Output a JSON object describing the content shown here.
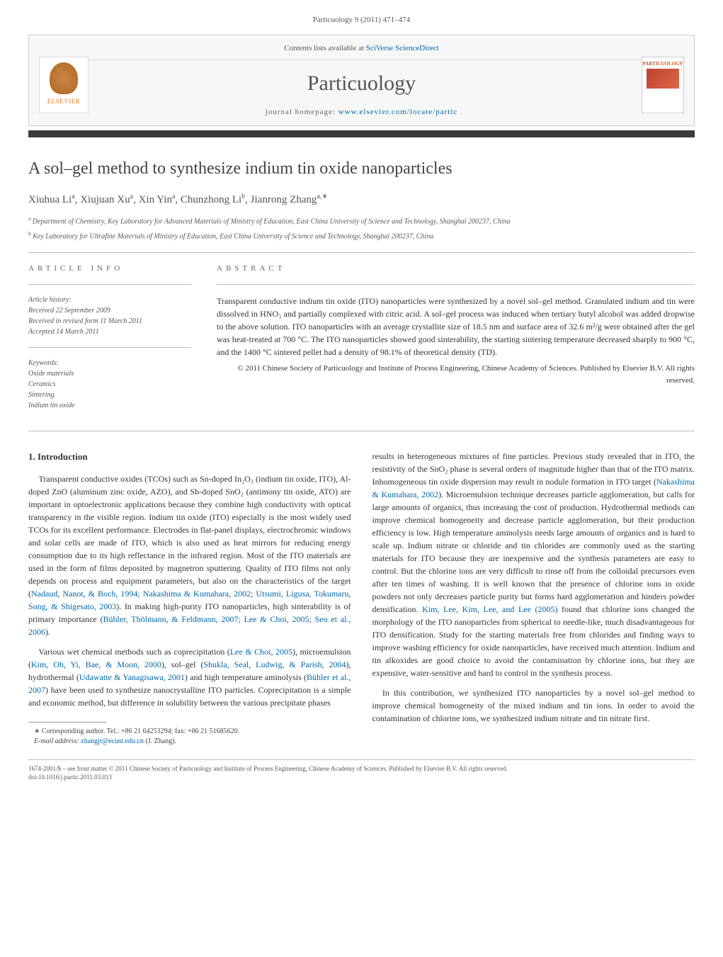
{
  "journal_ref": "Particuology 9 (2011) 471–474",
  "header": {
    "contents_line_prefix": "Contents lists available at ",
    "contents_link": "SciVerse ScienceDirect",
    "journal_title": "Particuology",
    "homepage_prefix": "journal homepage: ",
    "homepage_url": "www.elsevier.com/locate/partic",
    "publisher_name": "ELSEVIER",
    "cover_title": "PARTICUOLOGY"
  },
  "article": {
    "title": "A sol–gel method to synthesize indium tin oxide nanoparticles",
    "authors_html": "Xiuhua Li<sup>a</sup>, Xiujuan Xu<sup>a</sup>, Xin Yin<sup>a</sup>, Chunzhong Li<sup>b</sup>, Jianrong Zhang<sup>a,∗</sup>",
    "affiliations": [
      {
        "sup": "a",
        "text": "Department of Chemistry, Key Laboratory for Advanced Materials of Ministry of Education, East China University of Science and Technology, Shanghai 200237, China"
      },
      {
        "sup": "b",
        "text": "Key Laboratory for Ultrafine Materials of Ministry of Education, East China University of Science and Technology, Shanghai 200237, China"
      }
    ]
  },
  "info": {
    "label": "article info",
    "history_heading": "Article history:",
    "history": [
      "Received 22 September 2009",
      "Received in revised form 11 March 2011",
      "Accepted 14 March 2011"
    ],
    "keywords_heading": "Keywords:",
    "keywords": [
      "Oxide materials",
      "Ceramics",
      "Sintering",
      "Indium tin oxide"
    ]
  },
  "abstract": {
    "label": "abstract",
    "text": "Transparent conductive indium tin oxide (ITO) nanoparticles were synthesized by a novel sol–gel method. Granulated indium and tin were dissolved in HNO₃ and partially complexed with citric acid. A sol–gel process was induced when tertiary butyl alcohol was added dropwise to the above solution. ITO nanoparticles with an average crystallite size of 18.5 nm and surface area of 32.6 m²/g were obtained after the gel was heat-treated at 700 °C. The ITO nanoparticles showed good sinterability, the starting sintering temperature decreased sharply to 900 °C, and the 1400 °C sintered pellet had a density of 98.1% of theoretical density (TD).",
    "copyright": "© 2011 Chinese Society of Particuology and Institute of Process Engineering, Chinese Academy of Sciences. Published by Elsevier B.V. All rights reserved."
  },
  "body": {
    "section_heading": "1. Introduction",
    "col1": {
      "p1_pre": "Transparent conductive oxides (TCOs) such as Sn-doped In₂O₃ (indium tin oxide, ITO), Al-doped ZnO (aluminum zinc oxide, AZO), and Sb-doped SnO₂ (antimony tin oxide, ATO) are important in optoelectronic applications because they combine high conductivity with optical transparency in the visible region. Indium tin oxide (ITO) especially is the most widely used TCOs for its excellent performance. Electrodes in flat-panel displays, electrochromic windows and solar cells are made of ITO, which is also used as heat mirrors for reducing energy consumption due to its high reflectance in the infrared region. Most of the ITO materials are used in the form of films deposited by magnetron sputtering. Quality of ITO films not only depends on process and equipment parameters, but also on the characteristics of the target (",
      "p1_link1": "Nadaud, Nanot, & Boch, 1994; Nakashima & Kumahara, 2002; Utsumi, Ligusa, Tokumaru, Song, & Shigesato, 2003",
      "p1_mid": "). In making high-purity ITO nanoparticles, high sinterability is of primary importance (",
      "p1_link2": "Bühler, Thölmann, & Feldmann, 2007; Lee & Choi, 2005; Seo et al., 2006",
      "p1_post": ").",
      "p2_pre": "Various wet chemical methods such as coprecipitation (",
      "p2_link1": "Lee & Choi, 2005",
      "p2_mid1": "), microemulsion (",
      "p2_link2": "Kim, Oh, Yi, Bae, & Moon, 2000",
      "p2_mid2": "), sol–gel (",
      "p2_link3": "Shukla, Seal, Ludwig, & Parish, 2004",
      "p2_mid3": "), hydrothermal (",
      "p2_link4": "Udawatte & Yanagisawa, 2001",
      "p2_mid4": ") and high temperature aminolysis (",
      "p2_link5": "Bühler et al., 2007",
      "p2_post": ") have been used to synthesize nanocrystalline ITO particles. Coprecipitation is a simple and economic method, but difference in solubility between the various precipitate phases"
    },
    "col2": {
      "p1_pre": "results in heterogeneous mixtures of fine particles. Previous study revealed that in ITO, the resistivity of the SnO₂ phase is several orders of magnitude higher than that of the ITO matrix. Inhomogeneous tin oxide dispersion may result in nodule formation in ITO target (",
      "p1_link1": "Nakashima & Kumahara, 2002",
      "p1_mid": "). Microemulsion technique decreases particle agglomeration, but calls for large amounts of organics, thus increasing the cost of production. Hydrothermal methods can improve chemical homogeneity and decrease particle agglomeration, but their production efficiency is low. High temperature aminolysis needs large amounts of organics and is hard to scale up. Indium nitrate or chloride and tin chlorides are commonly used as the starting materials for ITO because they are inexpensive and the synthesis parameters are easy to control. But the chlorine ions are very difficult to rinse off from the colloidal precursors even after ten times of washing. It is well known that the presence of chlorine ions in oxide powders not only decreases particle purity but forms hard agglomeration and hinders powder densification. ",
      "p1_link2": "Kim, Lee, Kim, Lee, and Lee (2005)",
      "p1_post": " found that chlorine ions changed the morphology of the ITO nanoparticles from spherical to needle-like, much disadvantageous for ITO densification. Study for the starting materials free from chlorides and finding ways to improve washing efficiency for oxide nanoparticles, have received much attention. Indium and tin alkoxides are good choice to avoid the contamination by chlorine ions, but they are expensive, water-sensitive and hard to control in the synthesis process.",
      "p2": "In this contribution, we synthesized ITO nanoparticles by a novel sol–gel method to improve chemical homogeneity of the mixed indium and tin ions. In order to avoid the contamination of chlorine ions, we synthesized indium nitrate and tin nitrate first."
    }
  },
  "footnote": {
    "corr": "∗ Corresponding author. Tel.: +86 21 64253294; fax: +86 21 51685620.",
    "email_label": "E-mail address: ",
    "email": "zhangjr@ecust.edu.cn",
    "email_post": " (J. Zhang)."
  },
  "bottom": {
    "line1": "1674-2001/$ – see front matter © 2011 Chinese Society of Particuology and Institute of Process Engineering, Chinese Academy of Sciences. Published by Elsevier B.V. All rights reserved.",
    "doi": "doi:10.1016/j.partic.2011.03.013"
  },
  "style": {
    "link_color": "#0066aa",
    "text_color": "#333333",
    "muted_color": "#555555",
    "bg": "#ffffff"
  }
}
